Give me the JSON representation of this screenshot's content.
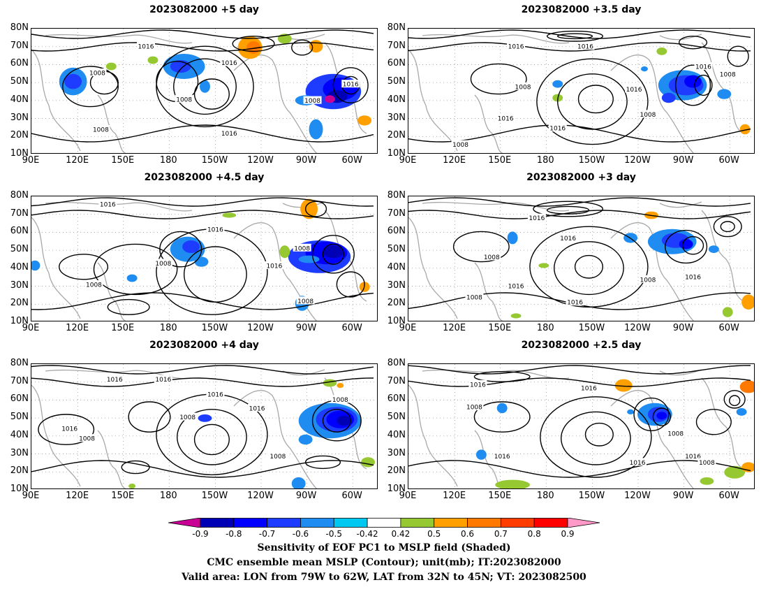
{
  "panels": [
    {
      "title": "2023082000  +5 day",
      "contours": [
        "1016",
        "1016",
        "1008",
        "1008",
        "1016",
        "1008",
        "1016",
        "1008"
      ]
    },
    {
      "title": "2023082000  +3.5 day",
      "contours": [
        "1016",
        "1016",
        "1016",
        "1008",
        "1016",
        "1008",
        "1008",
        "1016",
        "1008",
        "1016"
      ]
    },
    {
      "title": "2023082000  +4.5 day",
      "contours": [
        "1016",
        "1016",
        "1008",
        "1008",
        "1016",
        "1008",
        "1008"
      ]
    },
    {
      "title": "2023082000  +3 day",
      "contours": [
        "1016",
        "1016",
        "1008",
        "1008",
        "1016",
        "1016",
        "1008",
        "1016"
      ]
    },
    {
      "title": "2023082000  +4 day",
      "contours": [
        "1016",
        "1016",
        "1016",
        "1016",
        "1008",
        "1008",
        "1016",
        "1008",
        "1008"
      ]
    },
    {
      "title": "2023082000  +2.5 day",
      "contours": [
        "1016",
        "1016",
        "1008",
        "1008",
        "1016",
        "1016",
        "1016",
        "1008"
      ]
    }
  ],
  "axes": {
    "lat_labels": [
      "80N",
      "70N",
      "60N",
      "50N",
      "40N",
      "30N",
      "20N",
      "10N"
    ],
    "lon_labels": [
      "90E",
      "120E",
      "150E",
      "180",
      "150W",
      "120W",
      "90W",
      "60W"
    ]
  },
  "colorbar": {
    "labels": [
      "-0.9",
      "-0.8",
      "-0.7",
      "-0.6",
      "-0.5",
      "-0.42",
      "0.42",
      "0.5",
      "0.6",
      "0.7",
      "0.8",
      "0.9"
    ],
    "colors": [
      "#c80096",
      "#0000b4",
      "#0000ff",
      "#1e3cff",
      "#1e8cf0",
      "#00c8f0",
      "#ffffff",
      "#96c832",
      "#ffa000",
      "#ff7800",
      "#ff3c00",
      "#ff0000",
      "#ff9ac8"
    ]
  },
  "caption": {
    "line1": "Sensitivity of EOF PC1 to MSLP field (Shaded)",
    "line2": "CMC ensemble mean MSLP (Contour); unit(mb); IT:2023082000",
    "line3": "Valid area: LON from 79W to 62W, LAT from 32N to 45N; VT: 2023082500"
  }
}
